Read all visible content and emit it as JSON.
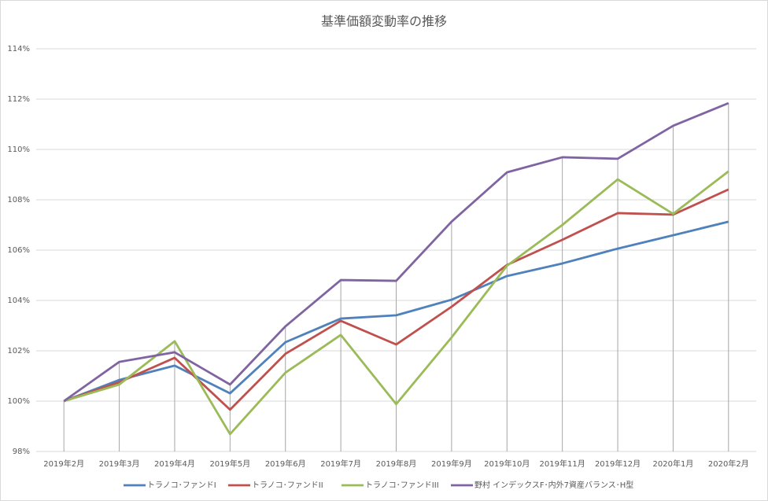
{
  "chart_data": {
    "type": "line",
    "title": "基準価額変動率の推移",
    "categories": [
      "2019年2月",
      "2019年3月",
      "2019年4月",
      "2019年5月",
      "2019年6月",
      "2019年7月",
      "2019年8月",
      "2019年9月",
      "2019年10月",
      "2019年11月",
      "2019年12月",
      "2020年1月",
      "2020年2月"
    ],
    "series": [
      {
        "name": "トラノコ･ファンドI",
        "color": "#4f81bd",
        "values": [
          100,
          100.84,
          101.41,
          100.31,
          102.34,
          103.28,
          103.41,
          104.03,
          104.97,
          105.47,
          106.06,
          106.59,
          107.13
        ]
      },
      {
        "name": "トラノコ･ファンドII",
        "color": "#c0504d",
        "values": [
          100,
          100.75,
          101.72,
          99.66,
          101.88,
          103.19,
          102.25,
          103.75,
          105.41,
          106.41,
          107.47,
          107.41,
          108.41
        ]
      },
      {
        "name": "トラノコ･ファンドIII",
        "color": "#9bbb59",
        "values": [
          100,
          100.66,
          102.38,
          98.69,
          101.13,
          102.63,
          99.88,
          102.53,
          105.38,
          107.0,
          108.81,
          107.44,
          109.13
        ]
      },
      {
        "name": "野村 インデックスF･内外7資産バランス･H型",
        "color": "#8064a2",
        "values": [
          100,
          101.56,
          101.94,
          100.66,
          102.97,
          104.81,
          104.78,
          107.13,
          109.09,
          109.69,
          109.63,
          110.94,
          111.84
        ]
      }
    ],
    "ylim": [
      98,
      114
    ],
    "yticks": [
      {
        "value": 98,
        "label": "98%"
      },
      {
        "value": 100,
        "label": "100%"
      },
      {
        "value": 102,
        "label": "102%"
      },
      {
        "value": 104,
        "label": "104%"
      },
      {
        "value": 106,
        "label": "106%"
      },
      {
        "value": 108,
        "label": "108%"
      },
      {
        "value": 110,
        "label": "110%"
      },
      {
        "value": 112,
        "label": "112%"
      },
      {
        "value": 114,
        "label": "114%"
      }
    ],
    "grid": true,
    "drop_lines": true,
    "legend": "bottom"
  }
}
